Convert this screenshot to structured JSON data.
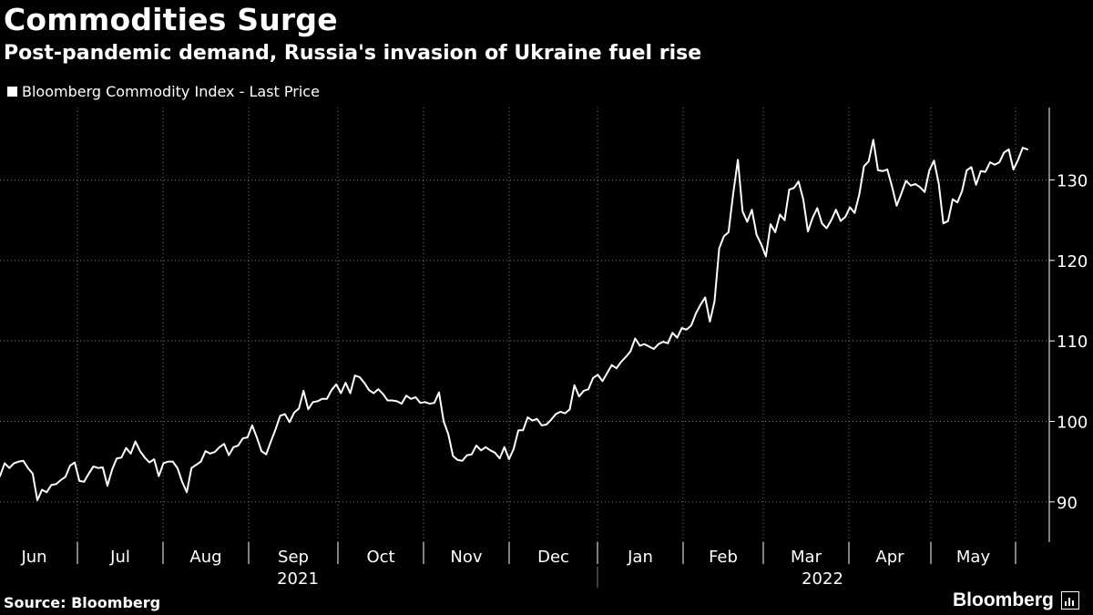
{
  "header": {
    "title": "Commodities Surge",
    "subtitle": "Post-pandemic demand, Russia's invasion of Ukraine fuel rise"
  },
  "footer": {
    "source": "Source: Bloomberg",
    "brand": "Bloomberg"
  },
  "colors": {
    "background": "#000000",
    "line": "#ffffff",
    "grid": "#7a7a7a",
    "text": "#ffffff"
  },
  "chart_data": {
    "type": "line",
    "title": "Commodities Surge",
    "subtitle": "Post-pandemic demand, Russia's invasion of Ukraine fuel rise",
    "legend": [
      "Bloomberg Commodity Index - Last Price"
    ],
    "legend_position": "top-left",
    "xlabel": "",
    "ylabel": "",
    "ylim": [
      85,
      139
    ],
    "yticks": [
      90,
      100,
      110,
      120,
      130
    ],
    "y_axis_side": "right",
    "x_month_labels": [
      "Jun",
      "Jul",
      "Aug",
      "Sep",
      "Oct",
      "Nov",
      "Dec",
      "Jan",
      "Feb",
      "Mar",
      "Apr",
      "May"
    ],
    "x_year_labels": [
      "2021",
      "2022"
    ],
    "grid": "dotted",
    "series": [
      {
        "name": "Bloomberg Commodity Index - Last Price",
        "values": [
          93.2,
          94.8,
          94.2,
          94.8,
          95.0,
          95.1,
          94.2,
          93.5,
          90.2,
          91.5,
          91.2,
          92.1,
          92.2,
          92.7,
          93.1,
          94.5,
          94.9,
          92.6,
          92.5,
          93.5,
          94.4,
          94.2,
          94.3,
          92.0,
          94.0,
          95.4,
          95.5,
          96.7,
          96.0,
          97.5,
          96.3,
          95.5,
          94.9,
          95.3,
          93.2,
          94.8,
          95.0,
          95.0,
          94.2,
          92.5,
          91.2,
          94.2,
          94.6,
          95.0,
          96.3,
          96.0,
          96.2,
          96.8,
          97.2,
          95.8,
          96.8,
          97.0,
          97.9,
          98.0,
          99.5,
          98.0,
          96.3,
          95.9,
          97.5,
          99.0,
          100.7,
          100.9,
          99.9,
          101.1,
          101.6,
          103.8,
          101.5,
          102.4,
          102.5,
          102.8,
          102.8,
          103.9,
          104.6,
          103.5,
          104.8,
          103.5,
          105.7,
          105.5,
          104.8,
          103.9,
          103.5,
          104.0,
          103.4,
          102.6,
          102.6,
          102.5,
          102.2,
          103.2,
          102.8,
          103.0,
          102.3,
          102.4,
          102.2,
          102.3,
          103.6,
          100.0,
          98.4,
          95.7,
          95.2,
          95.1,
          95.8,
          95.9,
          97.0,
          96.4,
          96.8,
          96.4,
          96.1,
          95.4,
          96.8,
          95.3,
          96.6,
          98.9,
          98.9,
          100.5,
          100.1,
          100.3,
          99.5,
          99.6,
          100.2,
          100.9,
          101.2,
          101.0,
          101.5,
          104.5,
          103.1,
          103.8,
          104.0,
          105.4,
          105.8,
          105.0,
          106.0,
          107.0,
          106.6,
          107.4,
          108.0,
          108.7,
          110.3,
          109.4,
          109.6,
          109.3,
          109.0,
          109.6,
          109.9,
          109.7,
          111.0,
          110.4,
          111.6,
          111.4,
          111.9,
          113.4,
          114.5,
          115.4,
          112.4,
          114.9,
          121.5,
          123.0,
          123.5,
          128.3,
          132.5,
          126.1,
          124.8,
          126.3,
          123.2,
          122.0,
          120.5,
          124.5,
          123.5,
          125.7,
          125.0,
          128.8,
          129.0,
          129.8,
          127.6,
          123.6,
          125.3,
          126.5,
          124.6,
          124.0,
          125.0,
          126.3,
          124.9,
          125.4,
          126.6,
          125.9,
          128.2,
          131.7,
          132.3,
          135.0,
          131.2,
          131.1,
          131.3,
          129.2,
          126.8,
          128.3,
          129.9,
          129.3,
          129.5,
          129.1,
          128.5,
          131.2,
          132.4,
          129.6,
          124.6,
          124.9,
          127.6,
          127.2,
          128.6,
          131.2,
          131.6,
          129.4,
          131.1,
          131.0,
          132.2,
          131.9,
          132.2,
          133.4,
          133.8,
          131.3,
          132.5,
          134.0,
          133.8
        ]
      }
    ]
  }
}
